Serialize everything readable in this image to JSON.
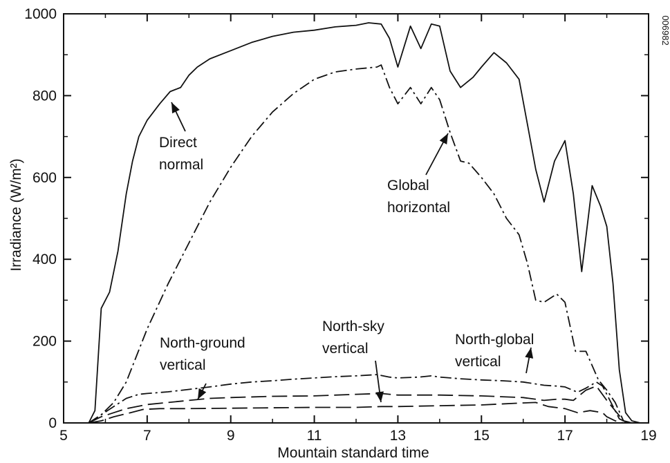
{
  "chart_data": {
    "type": "line",
    "title": "",
    "xlabel": "Mountain standard time",
    "ylabel": "Irradiance (W/m²)",
    "xlim": [
      5,
      19
    ],
    "ylim": [
      0,
      1000
    ],
    "x_ticks": [
      "5",
      "7",
      "9",
      "11",
      "13",
      "15",
      "17",
      "19"
    ],
    "y_ticks": [
      "0",
      "200",
      "400",
      "600",
      "800",
      "1000"
    ],
    "grid": false,
    "legend": "none (inline annotations with arrows)",
    "figure_id": "006982",
    "series": [
      {
        "label": [
          "Direct",
          "normal"
        ],
        "dash": "solid",
        "points": [
          [
            5.6,
            0
          ],
          [
            5.75,
            30
          ],
          [
            5.9,
            280
          ],
          [
            6.1,
            320
          ],
          [
            6.3,
            420
          ],
          [
            6.5,
            560
          ],
          [
            6.65,
            640
          ],
          [
            6.8,
            700
          ],
          [
            7.0,
            740
          ],
          [
            7.3,
            780
          ],
          [
            7.55,
            810
          ],
          [
            7.8,
            820
          ],
          [
            8.0,
            850
          ],
          [
            8.2,
            870
          ],
          [
            8.5,
            890
          ],
          [
            9.0,
            910
          ],
          [
            9.5,
            930
          ],
          [
            10.0,
            945
          ],
          [
            10.5,
            955
          ],
          [
            11.0,
            960
          ],
          [
            11.5,
            968
          ],
          [
            12.0,
            972
          ],
          [
            12.3,
            978
          ],
          [
            12.6,
            975
          ],
          [
            12.8,
            940
          ],
          [
            13.0,
            870
          ],
          [
            13.3,
            970
          ],
          [
            13.55,
            915
          ],
          [
            13.8,
            975
          ],
          [
            14.0,
            970
          ],
          [
            14.25,
            860
          ],
          [
            14.5,
            820
          ],
          [
            14.8,
            845
          ],
          [
            15.0,
            870
          ],
          [
            15.3,
            905
          ],
          [
            15.6,
            880
          ],
          [
            15.9,
            840
          ],
          [
            16.1,
            730
          ],
          [
            16.3,
            620
          ],
          [
            16.5,
            540
          ],
          [
            16.75,
            640
          ],
          [
            17.0,
            690
          ],
          [
            17.2,
            560
          ],
          [
            17.4,
            370
          ],
          [
            17.65,
            580
          ],
          [
            17.85,
            530
          ],
          [
            18.0,
            480
          ],
          [
            18.15,
            340
          ],
          [
            18.3,
            130
          ],
          [
            18.45,
            25
          ],
          [
            18.6,
            5
          ],
          [
            18.8,
            0
          ]
        ]
      },
      {
        "label": [
          "Global",
          "horizontal"
        ],
        "dash": "dash-dot",
        "points": [
          [
            5.6,
            0
          ],
          [
            5.9,
            20
          ],
          [
            6.2,
            50
          ],
          [
            6.5,
            100
          ],
          [
            7.0,
            230
          ],
          [
            7.5,
            340
          ],
          [
            8.0,
            440
          ],
          [
            8.5,
            540
          ],
          [
            9.0,
            625
          ],
          [
            9.5,
            700
          ],
          [
            10.0,
            760
          ],
          [
            10.5,
            805
          ],
          [
            11.0,
            840
          ],
          [
            11.5,
            858
          ],
          [
            12.0,
            865
          ],
          [
            12.5,
            870
          ],
          [
            12.6,
            875
          ],
          [
            12.8,
            820
          ],
          [
            13.0,
            780
          ],
          [
            13.3,
            820
          ],
          [
            13.55,
            780
          ],
          [
            13.8,
            820
          ],
          [
            14.0,
            790
          ],
          [
            14.25,
            710
          ],
          [
            14.5,
            640
          ],
          [
            14.7,
            635
          ],
          [
            15.0,
            600
          ],
          [
            15.3,
            560
          ],
          [
            15.6,
            500
          ],
          [
            15.9,
            460
          ],
          [
            16.1,
            390
          ],
          [
            16.3,
            300
          ],
          [
            16.5,
            295
          ],
          [
            16.8,
            315
          ],
          [
            17.0,
            295
          ],
          [
            17.25,
            175
          ],
          [
            17.5,
            175
          ],
          [
            17.8,
            105
          ],
          [
            18.0,
            80
          ],
          [
            18.2,
            50
          ],
          [
            18.4,
            5
          ],
          [
            18.6,
            0
          ]
        ]
      },
      {
        "label": [
          "North-global",
          "vertical"
        ],
        "dash": "dash-dot",
        "points": [
          [
            5.6,
            0
          ],
          [
            5.9,
            20
          ],
          [
            6.2,
            40
          ],
          [
            6.5,
            60
          ],
          [
            6.8,
            70
          ],
          [
            7.0,
            72
          ],
          [
            7.5,
            76
          ],
          [
            8.0,
            82
          ],
          [
            8.5,
            88
          ],
          [
            9.0,
            95
          ],
          [
            9.5,
            100
          ],
          [
            10.0,
            103
          ],
          [
            10.5,
            107
          ],
          [
            11.0,
            110
          ],
          [
            11.5,
            113
          ],
          [
            12.0,
            115
          ],
          [
            12.5,
            118
          ],
          [
            12.8,
            112
          ],
          [
            13.0,
            110
          ],
          [
            13.5,
            112
          ],
          [
            13.8,
            115
          ],
          [
            14.0,
            112
          ],
          [
            14.5,
            108
          ],
          [
            15.0,
            105
          ],
          [
            15.5,
            103
          ],
          [
            16.0,
            100
          ],
          [
            16.5,
            92
          ],
          [
            16.8,
            90
          ],
          [
            17.0,
            88
          ],
          [
            17.3,
            75
          ],
          [
            17.5,
            85
          ],
          [
            17.75,
            100
          ],
          [
            17.9,
            90
          ],
          [
            18.1,
            50
          ],
          [
            18.3,
            10
          ],
          [
            18.5,
            0
          ]
        ]
      },
      {
        "label": [
          "North-ground",
          "vertical"
        ],
        "dash": "long-dash",
        "points": [
          [
            5.6,
            0
          ],
          [
            5.9,
            15
          ],
          [
            6.2,
            25
          ],
          [
            6.5,
            35
          ],
          [
            7.0,
            45
          ],
          [
            7.5,
            50
          ],
          [
            8.0,
            55
          ],
          [
            8.5,
            60
          ],
          [
            9.0,
            62
          ],
          [
            10.0,
            65
          ],
          [
            11.0,
            66
          ],
          [
            12.0,
            70
          ],
          [
            12.6,
            72
          ],
          [
            13.0,
            68
          ],
          [
            13.5,
            68
          ],
          [
            14.0,
            68
          ],
          [
            15.0,
            66
          ],
          [
            16.0,
            62
          ],
          [
            16.5,
            55
          ],
          [
            16.8,
            58
          ],
          [
            17.0,
            58
          ],
          [
            17.2,
            55
          ],
          [
            17.5,
            80
          ],
          [
            17.75,
            90
          ],
          [
            18.0,
            55
          ],
          [
            18.2,
            30
          ],
          [
            18.4,
            5
          ],
          [
            18.6,
            0
          ]
        ]
      },
      {
        "label": [
          "North-sky",
          "vertical"
        ],
        "dash": "long-dash",
        "points": [
          [
            5.6,
            0
          ],
          [
            5.9,
            5
          ],
          [
            6.2,
            15
          ],
          [
            6.6,
            25
          ],
          [
            6.9,
            33
          ],
          [
            7.3,
            35
          ],
          [
            8.0,
            35
          ],
          [
            9.0,
            36
          ],
          [
            10.0,
            37
          ],
          [
            11.0,
            38
          ],
          [
            12.0,
            38
          ],
          [
            12.6,
            40
          ],
          [
            13.0,
            40
          ],
          [
            14.0,
            42
          ],
          [
            15.0,
            44
          ],
          [
            15.8,
            48
          ],
          [
            16.3,
            50
          ],
          [
            16.6,
            40
          ],
          [
            17.0,
            35
          ],
          [
            17.3,
            25
          ],
          [
            17.6,
            30
          ],
          [
            17.9,
            25
          ],
          [
            18.0,
            15
          ],
          [
            18.2,
            5
          ],
          [
            18.4,
            0
          ]
        ]
      }
    ]
  }
}
